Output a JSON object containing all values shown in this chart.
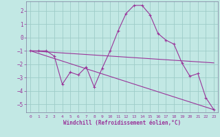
{
  "xlabel": "Windchill (Refroidissement éolien,°C)",
  "bg_color": "#c2e8e4",
  "grid_color": "#9eccc8",
  "line_color": "#993399",
  "spine_color": "#7a7a9a",
  "xlim": [
    -0.5,
    23.5
  ],
  "ylim": [
    -5.6,
    2.7
  ],
  "yticks": [
    -5,
    -4,
    -3,
    -2,
    -1,
    0,
    1,
    2
  ],
  "xticks": [
    0,
    1,
    2,
    3,
    4,
    5,
    6,
    7,
    8,
    9,
    10,
    11,
    12,
    13,
    14,
    15,
    16,
    17,
    18,
    19,
    20,
    21,
    22,
    23
  ],
  "line1_x": [
    0,
    1,
    2,
    3,
    4,
    5,
    6,
    7,
    8,
    9,
    10,
    11,
    12,
    13,
    14,
    15,
    16,
    17,
    18,
    19,
    20,
    21,
    22,
    23
  ],
  "line1_y": [
    -1.0,
    -1.0,
    -1.0,
    -1.4,
    -3.5,
    -2.6,
    -2.8,
    -2.2,
    -3.7,
    -2.3,
    -1.0,
    0.5,
    1.8,
    2.4,
    2.4,
    1.7,
    0.3,
    -0.2,
    -0.5,
    -1.9,
    -2.9,
    -2.7,
    -4.5,
    -5.4
  ],
  "line2_x": [
    0,
    23
  ],
  "line2_y": [
    -1.0,
    -1.9
  ],
  "line3_x": [
    0,
    23
  ],
  "line3_y": [
    -1.0,
    -5.4
  ]
}
